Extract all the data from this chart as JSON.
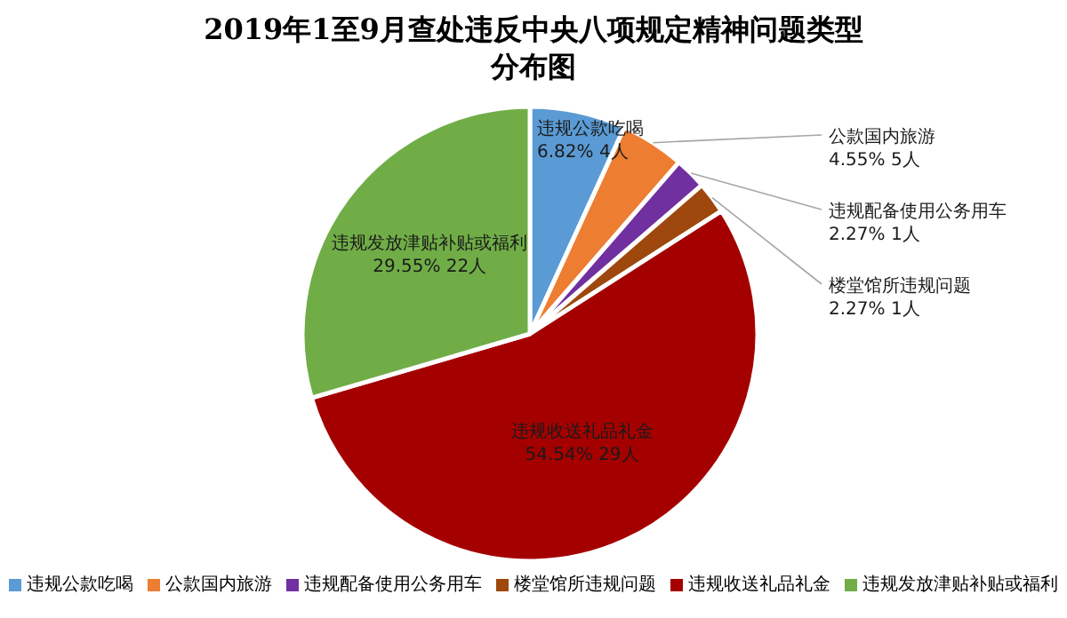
{
  "chart_data": {
    "type": "pie",
    "title": "2019年1至9月查处违反中央八项规定精神问题类型分布图",
    "categories": [
      "违规公款吃喝",
      "公款国内旅游",
      "违规配备使用公务用车",
      "楼堂馆所违规问题",
      "违规收送礼品礼金",
      "违规发放津贴补贴或福利"
    ],
    "values": [
      6.82,
      4.55,
      2.27,
      2.27,
      54.54,
      29.55
    ],
    "value_labels": [
      "6.82%  4人",
      "4.55%  5人",
      "2.27%  1人",
      "2.27%  1人",
      "54.54%  29人",
      "29.55%  22人"
    ],
    "colors": [
      "#5b9bd5",
      "#ed7d31",
      "#7030a0",
      "#9e480e",
      "#a50000",
      "#70ad47"
    ],
    "legend": "bottom"
  }
}
